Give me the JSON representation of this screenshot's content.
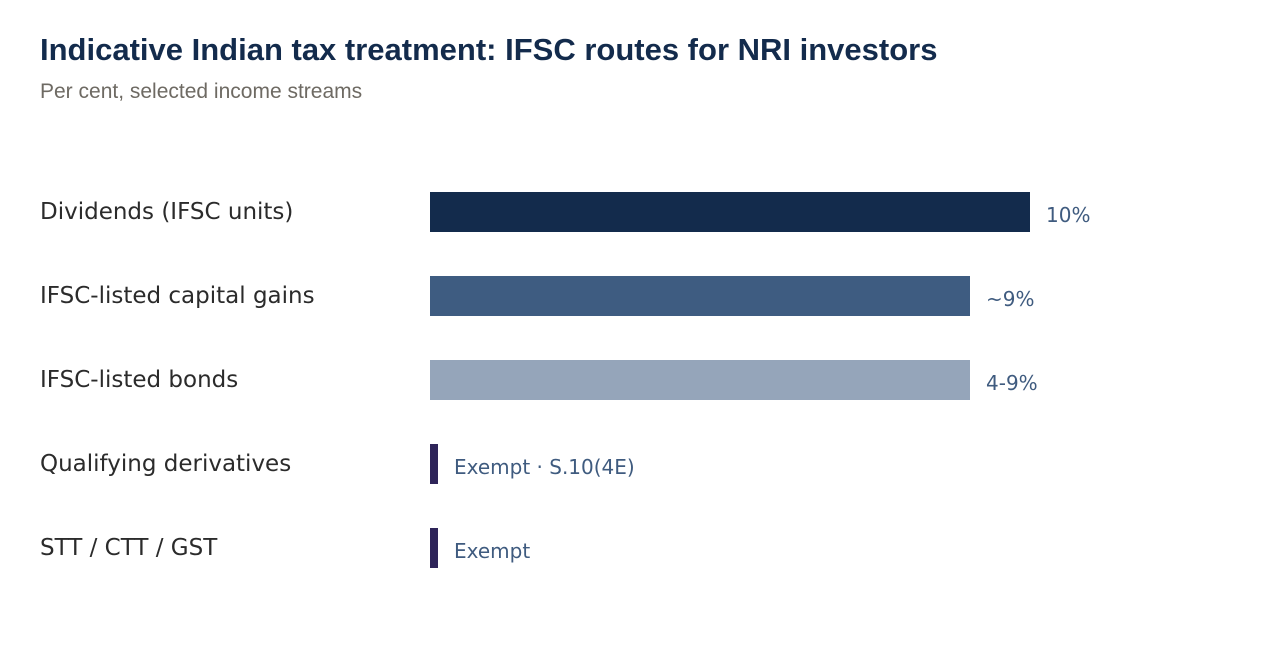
{
  "chart_data": {
    "type": "bar",
    "orientation": "horizontal",
    "title": "Indicative Indian tax treatment: IFSC routes for NRI investors",
    "subtitle": "Per cent, selected income streams",
    "xlim": [
      0,
      10
    ],
    "grid": false,
    "legend": "none",
    "categories": [
      "Dividends (IFSC units)",
      "IFSC-listed capital gains",
      "IFSC-listed bonds",
      "Qualifying derivatives",
      "STT / CTT / GST"
    ],
    "values": [
      10,
      9,
      9,
      0,
      0
    ],
    "value_labels": [
      "10%",
      "~9%",
      "4-9%",
      "Exempt · S.10(4E)",
      "Exempt"
    ],
    "colors": [
      "#132b4c",
      "#3e5c81",
      "#95a5ba",
      "#2e2459",
      "#2e2459"
    ]
  }
}
